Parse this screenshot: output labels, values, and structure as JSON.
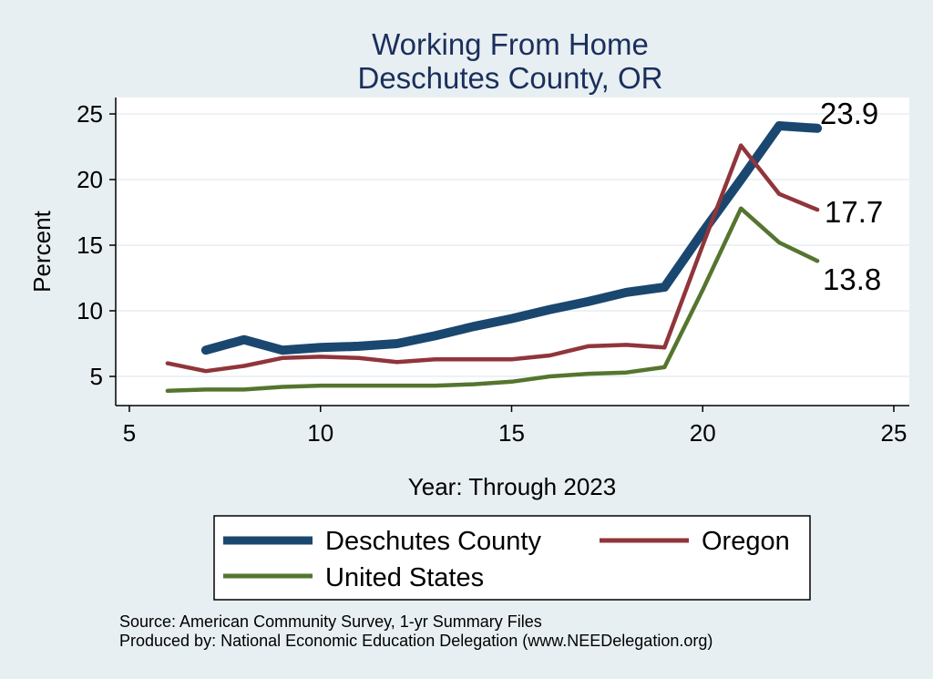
{
  "chart_data": {
    "type": "line",
    "title": "Working From Home",
    "subtitle": "Deschutes County, OR",
    "xlabel": "Year: Through 2023",
    "ylabel": "Percent",
    "xlim": [
      5,
      25
    ],
    "ylim": [
      3,
      26
    ],
    "x_ticks": [
      5,
      10,
      15,
      20,
      25
    ],
    "y_ticks": [
      5,
      10,
      15,
      20,
      25
    ],
    "grid": true,
    "legend_position": "bottom",
    "series": [
      {
        "name": "Deschutes County",
        "color": "#1a476f",
        "x": [
          7,
          8,
          9,
          10,
          11,
          12,
          13,
          14,
          15,
          16,
          17,
          18,
          19,
          20,
          21,
          22,
          23
        ],
        "values": [
          7.0,
          7.8,
          7.0,
          7.2,
          7.3,
          7.5,
          8.1,
          8.8,
          9.4,
          10.1,
          10.7,
          11.4,
          11.8,
          16.0,
          20.0,
          24.1,
          23.9
        ]
      },
      {
        "name": "Oregon",
        "color": "#90353b",
        "x": [
          6,
          7,
          8,
          9,
          10,
          11,
          12,
          13,
          14,
          15,
          16,
          17,
          18,
          19,
          20,
          21,
          22,
          23
        ],
        "values": [
          6.0,
          5.4,
          5.8,
          6.4,
          6.5,
          6.4,
          6.1,
          6.3,
          6.3,
          6.3,
          6.6,
          7.3,
          7.4,
          7.2,
          15.0,
          22.6,
          18.9,
          17.7
        ]
      },
      {
        "name": "United States",
        "color": "#55752f",
        "x": [
          6,
          7,
          8,
          9,
          10,
          11,
          12,
          13,
          14,
          15,
          16,
          17,
          18,
          19,
          20,
          21,
          22,
          23
        ],
        "values": [
          3.9,
          4.0,
          4.0,
          4.2,
          4.3,
          4.3,
          4.3,
          4.3,
          4.4,
          4.6,
          5.0,
          5.2,
          5.3,
          5.7,
          11.6,
          17.8,
          15.2,
          13.8
        ]
      }
    ],
    "end_labels": [
      "23.9",
      "17.7",
      "13.8"
    ],
    "notes": [
      "Source: American Community Survey, 1-yr Summary Files",
      "Produced by: National Economic Education Delegation (www.NEEDelegation.org)"
    ]
  }
}
